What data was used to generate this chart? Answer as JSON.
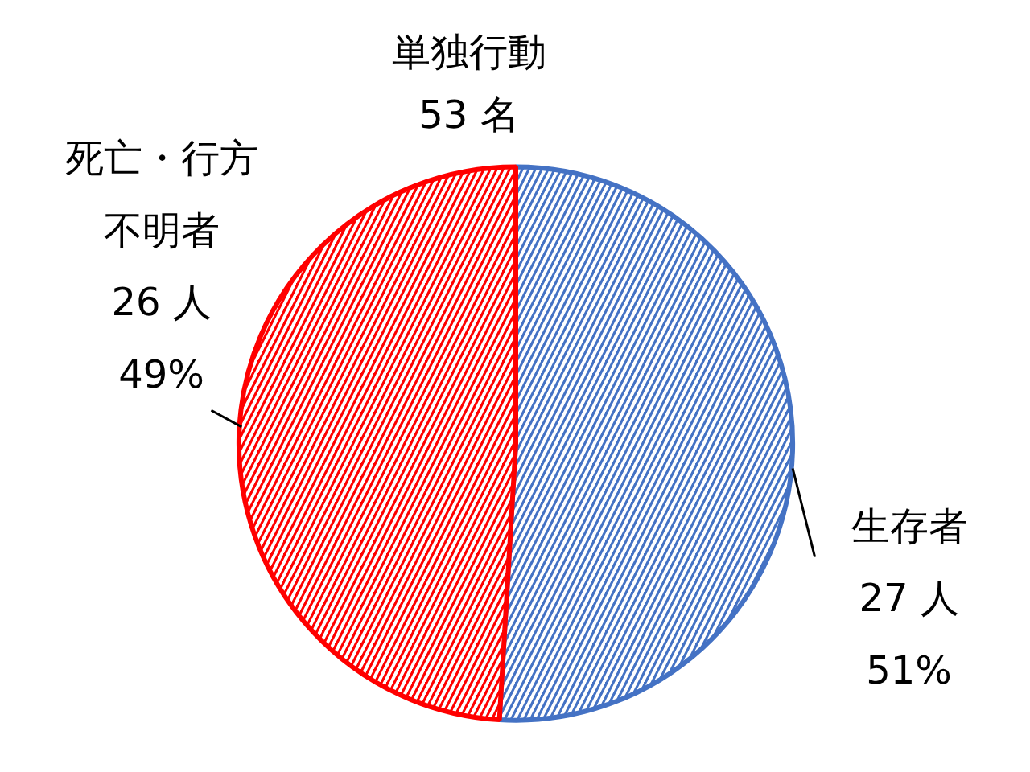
{
  "chart_data": {
    "type": "pie",
    "title": "単独行動\n53 名",
    "categories": [
      "生存者",
      "死亡・行方不明者"
    ],
    "values": [
      27,
      26
    ],
    "colors": [
      "#4472c4",
      "#ff0000"
    ],
    "value_labels": [
      "27 人\n51%",
      "26 人\n49%"
    ]
  }
}
